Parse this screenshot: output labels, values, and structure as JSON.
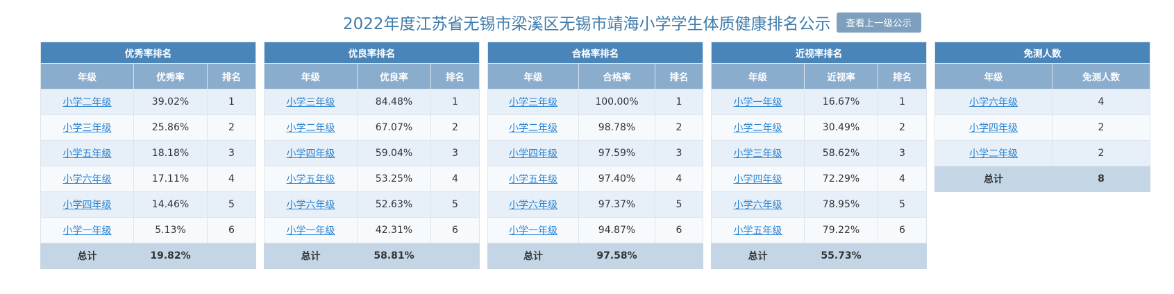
{
  "header": {
    "title": "2022年度江苏省无锡市梁溪区无锡市靖海小学学生体质健康排名公示",
    "up_button": "查看上一级公示"
  },
  "excellent": {
    "title": "优秀率排名",
    "cols": [
      "年级",
      "优秀率",
      "排名"
    ],
    "rows": [
      {
        "grade": "小学二年级",
        "value": "39.02%",
        "rank": "1"
      },
      {
        "grade": "小学三年级",
        "value": "25.86%",
        "rank": "2"
      },
      {
        "grade": "小学五年级",
        "value": "18.18%",
        "rank": "3"
      },
      {
        "grade": "小学六年级",
        "value": "17.11%",
        "rank": "4"
      },
      {
        "grade": "小学四年级",
        "value": "14.46%",
        "rank": "5"
      },
      {
        "grade": "小学一年级",
        "value": "5.13%",
        "rank": "6"
      }
    ],
    "total_label": "总计",
    "total_value": "19.82%"
  },
  "good": {
    "title": "优良率排名",
    "cols": [
      "年级",
      "优良率",
      "排名"
    ],
    "rows": [
      {
        "grade": "小学三年级",
        "value": "84.48%",
        "rank": "1"
      },
      {
        "grade": "小学二年级",
        "value": "67.07%",
        "rank": "2"
      },
      {
        "grade": "小学四年级",
        "value": "59.04%",
        "rank": "3"
      },
      {
        "grade": "小学五年级",
        "value": "53.25%",
        "rank": "4"
      },
      {
        "grade": "小学六年级",
        "value": "52.63%",
        "rank": "5"
      },
      {
        "grade": "小学一年级",
        "value": "42.31%",
        "rank": "6"
      }
    ],
    "total_label": "总计",
    "total_value": "58.81%"
  },
  "pass": {
    "title": "合格率排名",
    "cols": [
      "年级",
      "合格率",
      "排名"
    ],
    "rows": [
      {
        "grade": "小学三年级",
        "value": "100.00%",
        "rank": "1"
      },
      {
        "grade": "小学二年级",
        "value": "98.78%",
        "rank": "2"
      },
      {
        "grade": "小学四年级",
        "value": "97.59%",
        "rank": "3"
      },
      {
        "grade": "小学五年级",
        "value": "97.40%",
        "rank": "4"
      },
      {
        "grade": "小学六年级",
        "value": "97.37%",
        "rank": "5"
      },
      {
        "grade": "小学一年级",
        "value": "94.87%",
        "rank": "6"
      }
    ],
    "total_label": "总计",
    "total_value": "97.58%"
  },
  "myopia": {
    "title": "近视率排名",
    "cols": [
      "年级",
      "近视率",
      "排名"
    ],
    "rows": [
      {
        "grade": "小学一年级",
        "value": "16.67%",
        "rank": "1"
      },
      {
        "grade": "小学二年级",
        "value": "30.49%",
        "rank": "2"
      },
      {
        "grade": "小学三年级",
        "value": "58.62%",
        "rank": "3"
      },
      {
        "grade": "小学四年级",
        "value": "72.29%",
        "rank": "4"
      },
      {
        "grade": "小学六年级",
        "value": "78.95%",
        "rank": "5"
      },
      {
        "grade": "小学五年级",
        "value": "79.22%",
        "rank": "6"
      }
    ],
    "total_label": "总计",
    "total_value": "55.73%"
  },
  "exempt": {
    "title": "免测人数",
    "cols": [
      "年级",
      "免测人数"
    ],
    "rows": [
      {
        "grade": "小学六年级",
        "value": "4"
      },
      {
        "grade": "小学四年级",
        "value": "2"
      },
      {
        "grade": "小学二年级",
        "value": "2"
      }
    ],
    "total_label": "总计",
    "total_value": "8"
  }
}
